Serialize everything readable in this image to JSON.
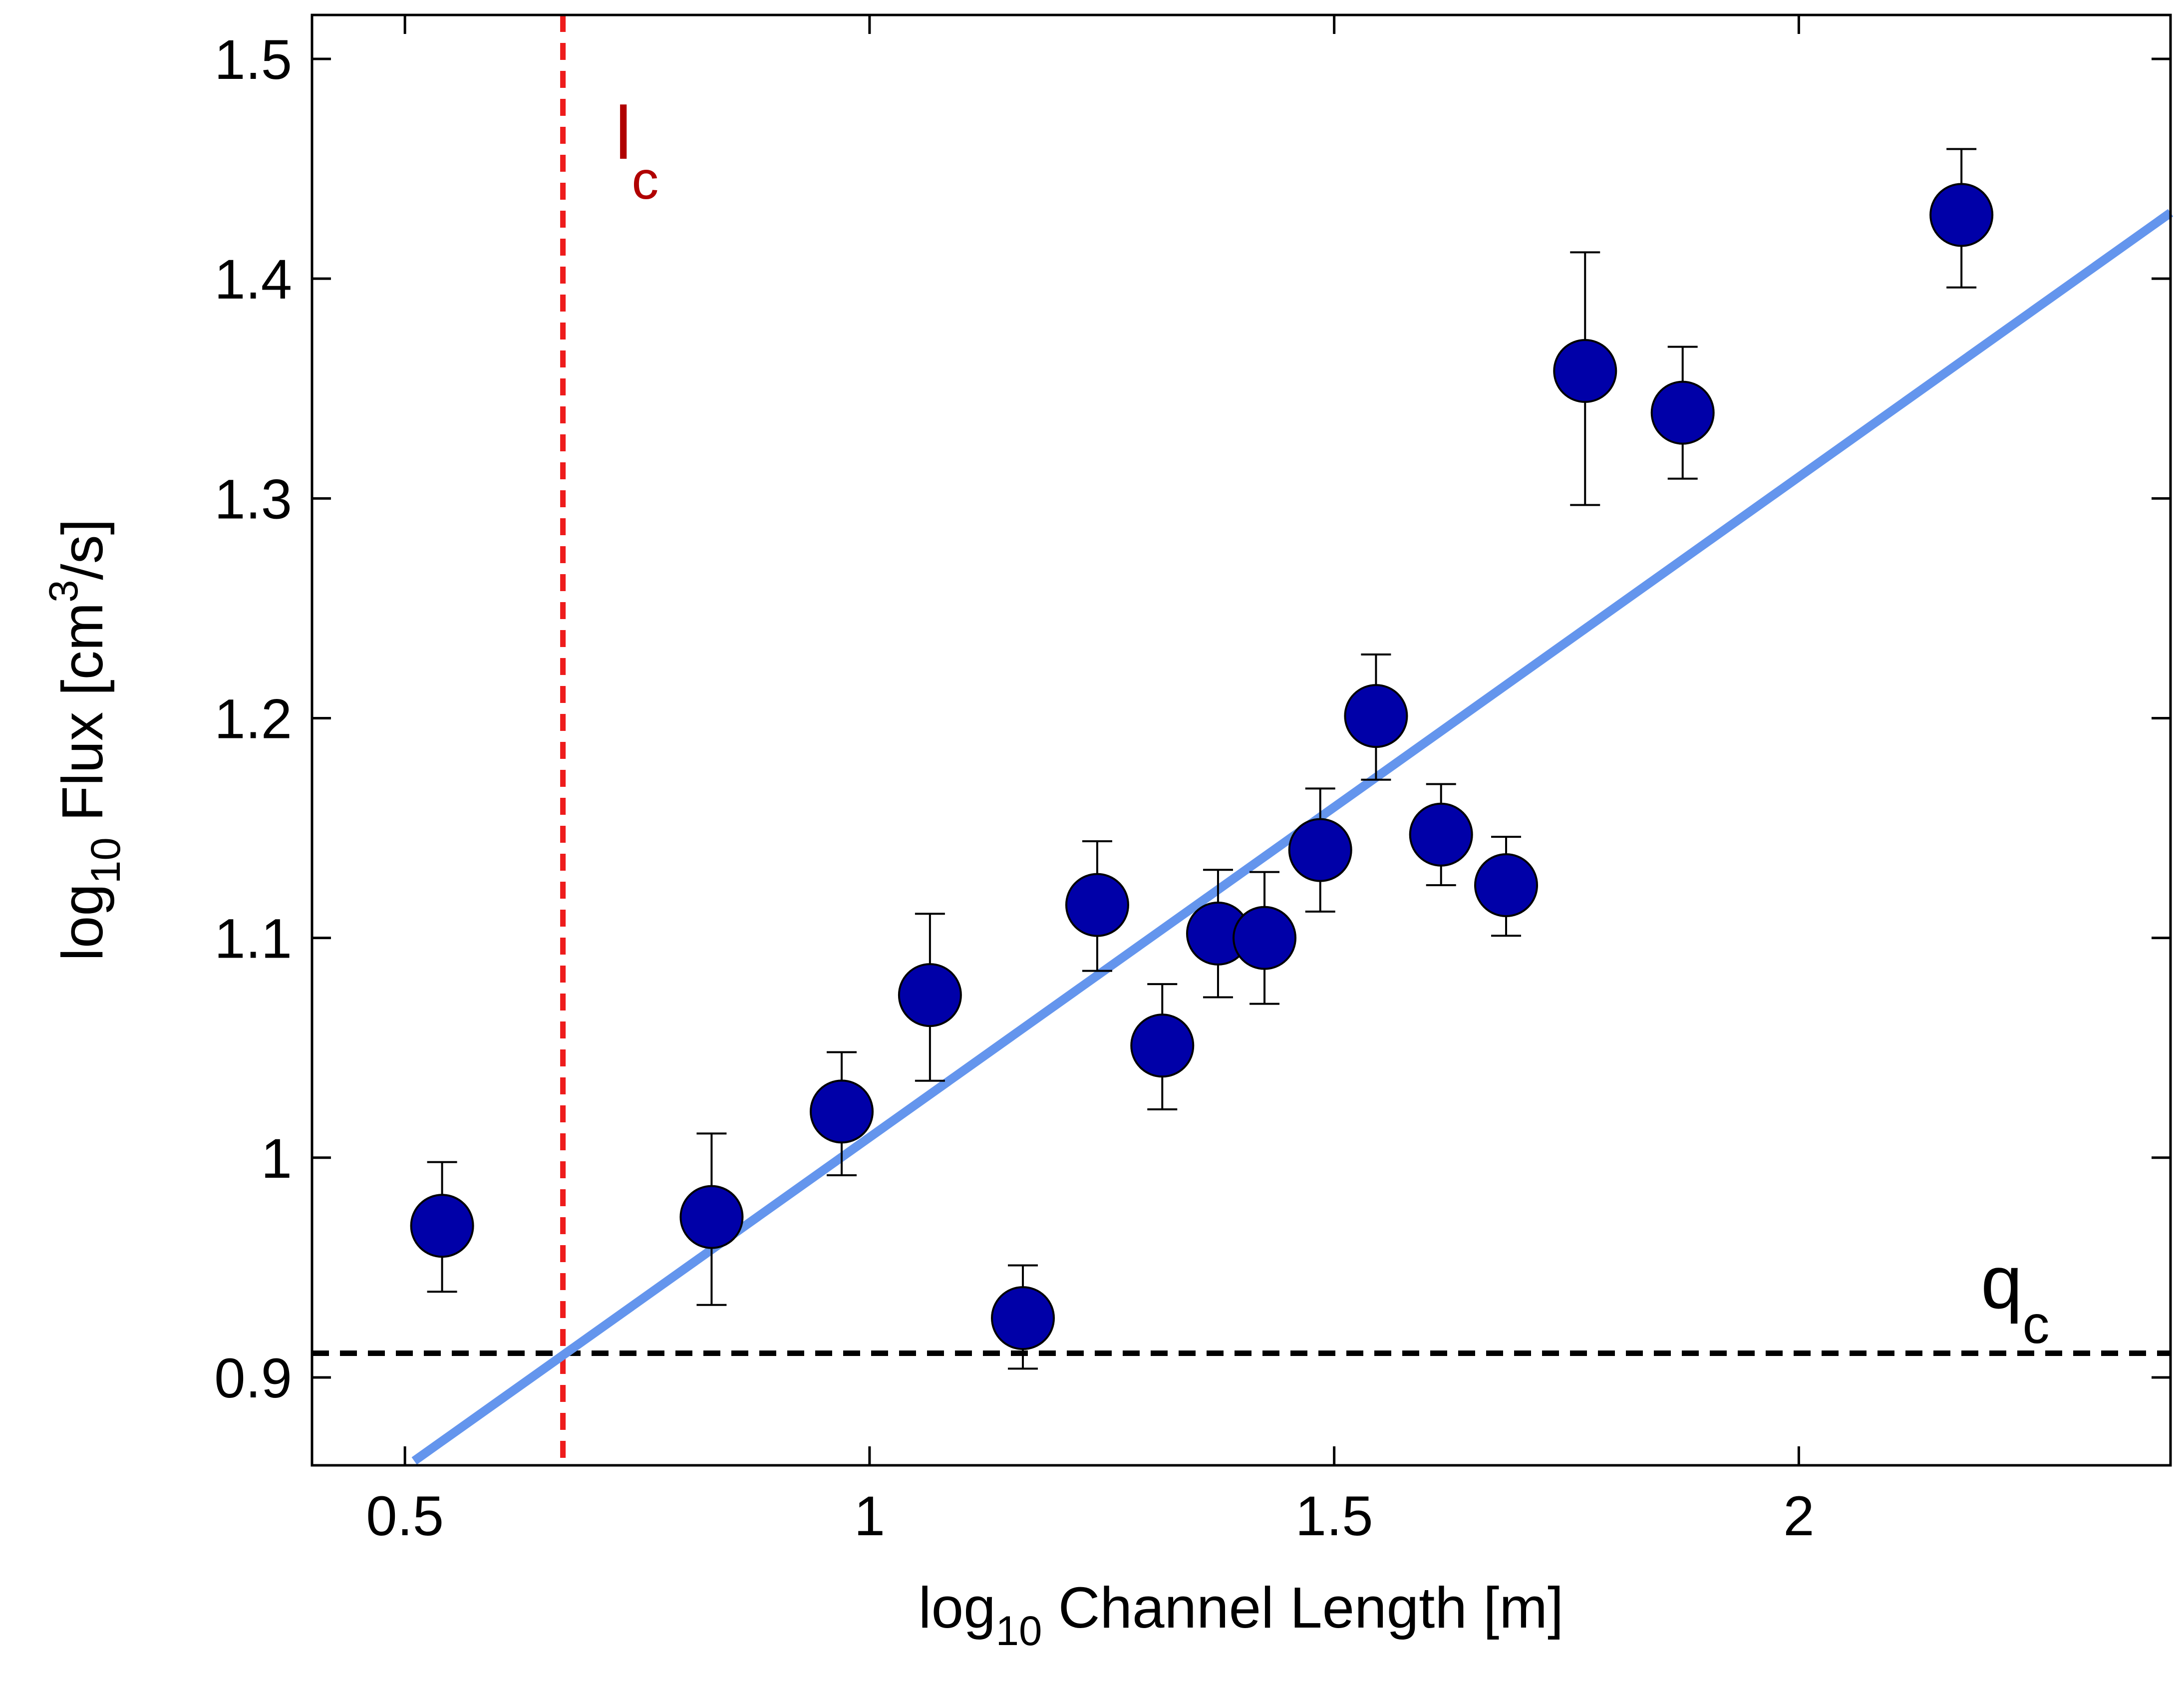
{
  "chart_data": {
    "type": "scatter",
    "title": "",
    "xlabel": {
      "base": "log",
      "sub": "10",
      "rest": " Channel Length [m]"
    },
    "ylabel": {
      "base": "log",
      "sub": "10",
      "mid": " Flux [cm",
      "sup": "3",
      "end": "/s]"
    },
    "xlim": [
      0.4,
      2.4
    ],
    "ylim": [
      0.86,
      1.52
    ],
    "x_ticks": [
      0.5,
      1,
      1.5,
      2
    ],
    "x_tick_labels": [
      "0.5",
      "1",
      "1.5",
      "2"
    ],
    "y_ticks": [
      0.9,
      1,
      1.1,
      1.2,
      1.3,
      1.4,
      1.5
    ],
    "y_tick_labels": [
      "0.9",
      "1",
      "1.1",
      "1.2",
      "1.3",
      "1.4",
      "1.5"
    ],
    "grid": false,
    "points": [
      {
        "x": 0.54,
        "y": 0.969,
        "err_low": 0.939,
        "err_high": 0.998
      },
      {
        "x": 0.83,
        "y": 0.973,
        "err_low": 0.933,
        "err_high": 1.011
      },
      {
        "x": 0.97,
        "y": 1.021,
        "err_low": 0.992,
        "err_high": 1.048
      },
      {
        "x": 1.065,
        "y": 1.074,
        "err_low": 1.035,
        "err_high": 1.111
      },
      {
        "x": 1.165,
        "y": 0.927,
        "err_low": 0.904,
        "err_high": 0.951
      },
      {
        "x": 1.245,
        "y": 1.115,
        "err_low": 1.085,
        "err_high": 1.144
      },
      {
        "x": 1.315,
        "y": 1.051,
        "err_low": 1.022,
        "err_high": 1.079
      },
      {
        "x": 1.375,
        "y": 1.102,
        "err_low": 1.073,
        "err_high": 1.131
      },
      {
        "x": 1.425,
        "y": 1.1,
        "err_low": 1.07,
        "err_high": 1.13
      },
      {
        "x": 1.485,
        "y": 1.14,
        "err_low": 1.112,
        "err_high": 1.168
      },
      {
        "x": 1.545,
        "y": 1.201,
        "err_low": 1.172,
        "err_high": 1.229
      },
      {
        "x": 1.615,
        "y": 1.147,
        "err_low": 1.124,
        "err_high": 1.17
      },
      {
        "x": 1.685,
        "y": 1.124,
        "err_low": 1.101,
        "err_high": 1.146
      },
      {
        "x": 1.77,
        "y": 1.358,
        "err_low": 1.297,
        "err_high": 1.412
      },
      {
        "x": 1.875,
        "y": 1.339,
        "err_low": 1.309,
        "err_high": 1.369
      },
      {
        "x": 2.175,
        "y": 1.429,
        "err_low": 1.396,
        "err_high": 1.459
      }
    ],
    "fit_line": {
      "x": [
        0.51,
        2.4
      ],
      "y": [
        0.862,
        1.43
      ],
      "color": "#6495ED"
    },
    "vertical_threshold": {
      "x": 0.67,
      "label_base": "l",
      "label_sub": "c",
      "color": "#EE1C1C",
      "label_color": "#B00000"
    },
    "horizontal_threshold": {
      "y": 0.911,
      "label_base": "q",
      "label_sub": "c",
      "color": "#000000"
    },
    "marker_color": "#0000A8"
  }
}
